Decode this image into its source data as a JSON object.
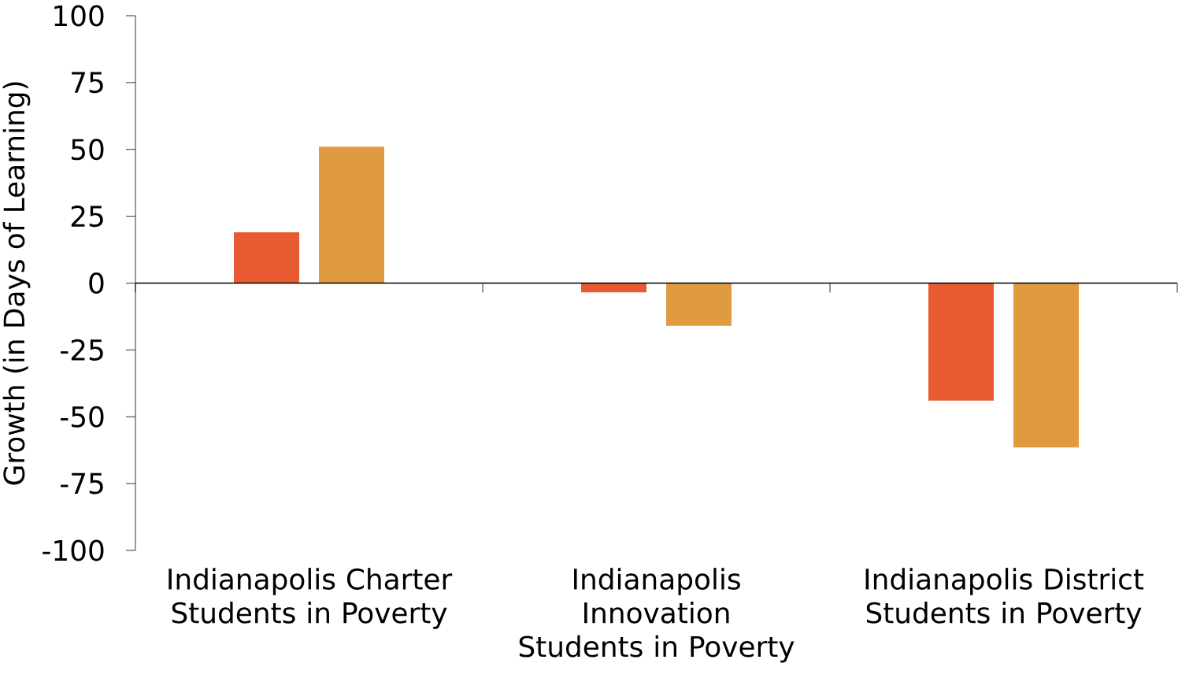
{
  "chart_data": {
    "type": "bar",
    "ylabel": "Growth (in Days of Learning)",
    "categories": [
      "Indianapolis Charter Students in Poverty",
      "Indianapolis Innovation Students in Poverty",
      "Indianapolis District Students in Poverty"
    ],
    "series": [
      {
        "color": "#e85a32",
        "values": [
          19,
          -3.5,
          -44
        ]
      },
      {
        "color": "#e09b40",
        "values": [
          51,
          -16,
          -61.5
        ]
      }
    ],
    "ylim": [
      -100,
      100
    ],
    "yticks": [
      -100,
      -75,
      -50,
      -25,
      0,
      25,
      50,
      75,
      100
    ]
  }
}
